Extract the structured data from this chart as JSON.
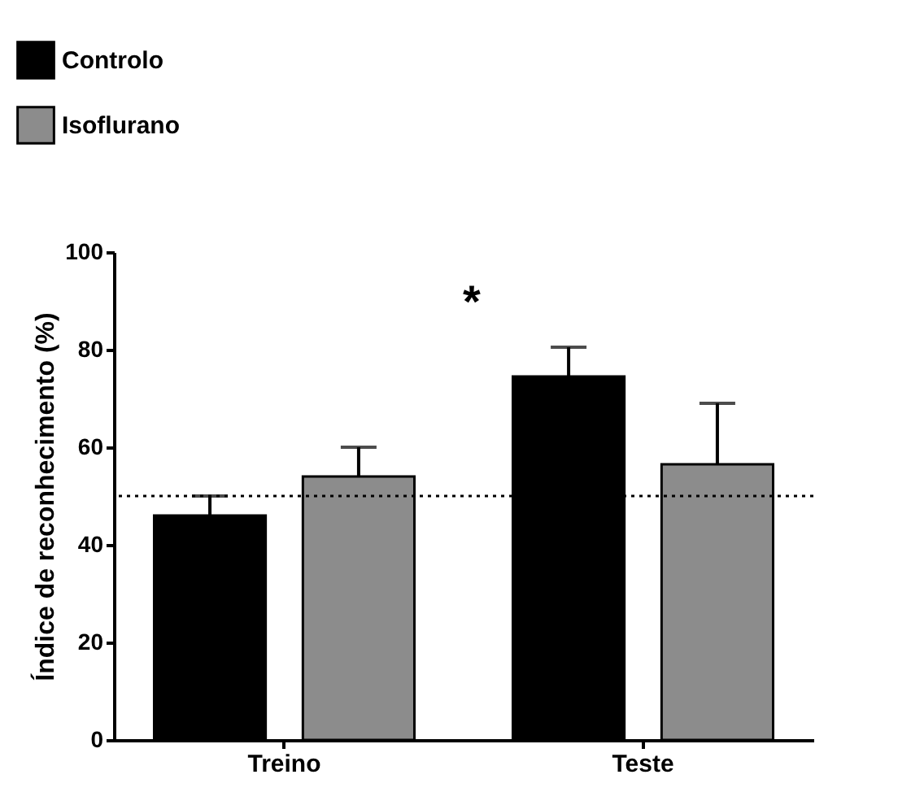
{
  "chart_data": {
    "type": "bar",
    "ylabel": "Índice de reconhecimento (%)",
    "categories": [
      "Treino",
      "Teste"
    ],
    "series": [
      {
        "name": "Controlo",
        "color": "#000000",
        "values": [
          46,
          74.5
        ],
        "errors": [
          [
            46,
            50
          ],
          [
            74.5,
            80.5
          ]
        ]
      },
      {
        "name": "Isoflurano",
        "color": "#8c8c8c",
        "values": [
          54,
          56.5
        ],
        "errors": [
          [
            54,
            60
          ],
          [
            56.5,
            69
          ]
        ]
      }
    ],
    "ylim": [
      0,
      100
    ],
    "yticks": [
      0,
      20,
      40,
      60,
      80,
      100
    ],
    "grid": false,
    "legend": "top left",
    "ref_lines": [
      {
        "axis": "y",
        "value": 50,
        "line_style": "dotted"
      }
    ],
    "annotations": [
      "*"
    ]
  }
}
